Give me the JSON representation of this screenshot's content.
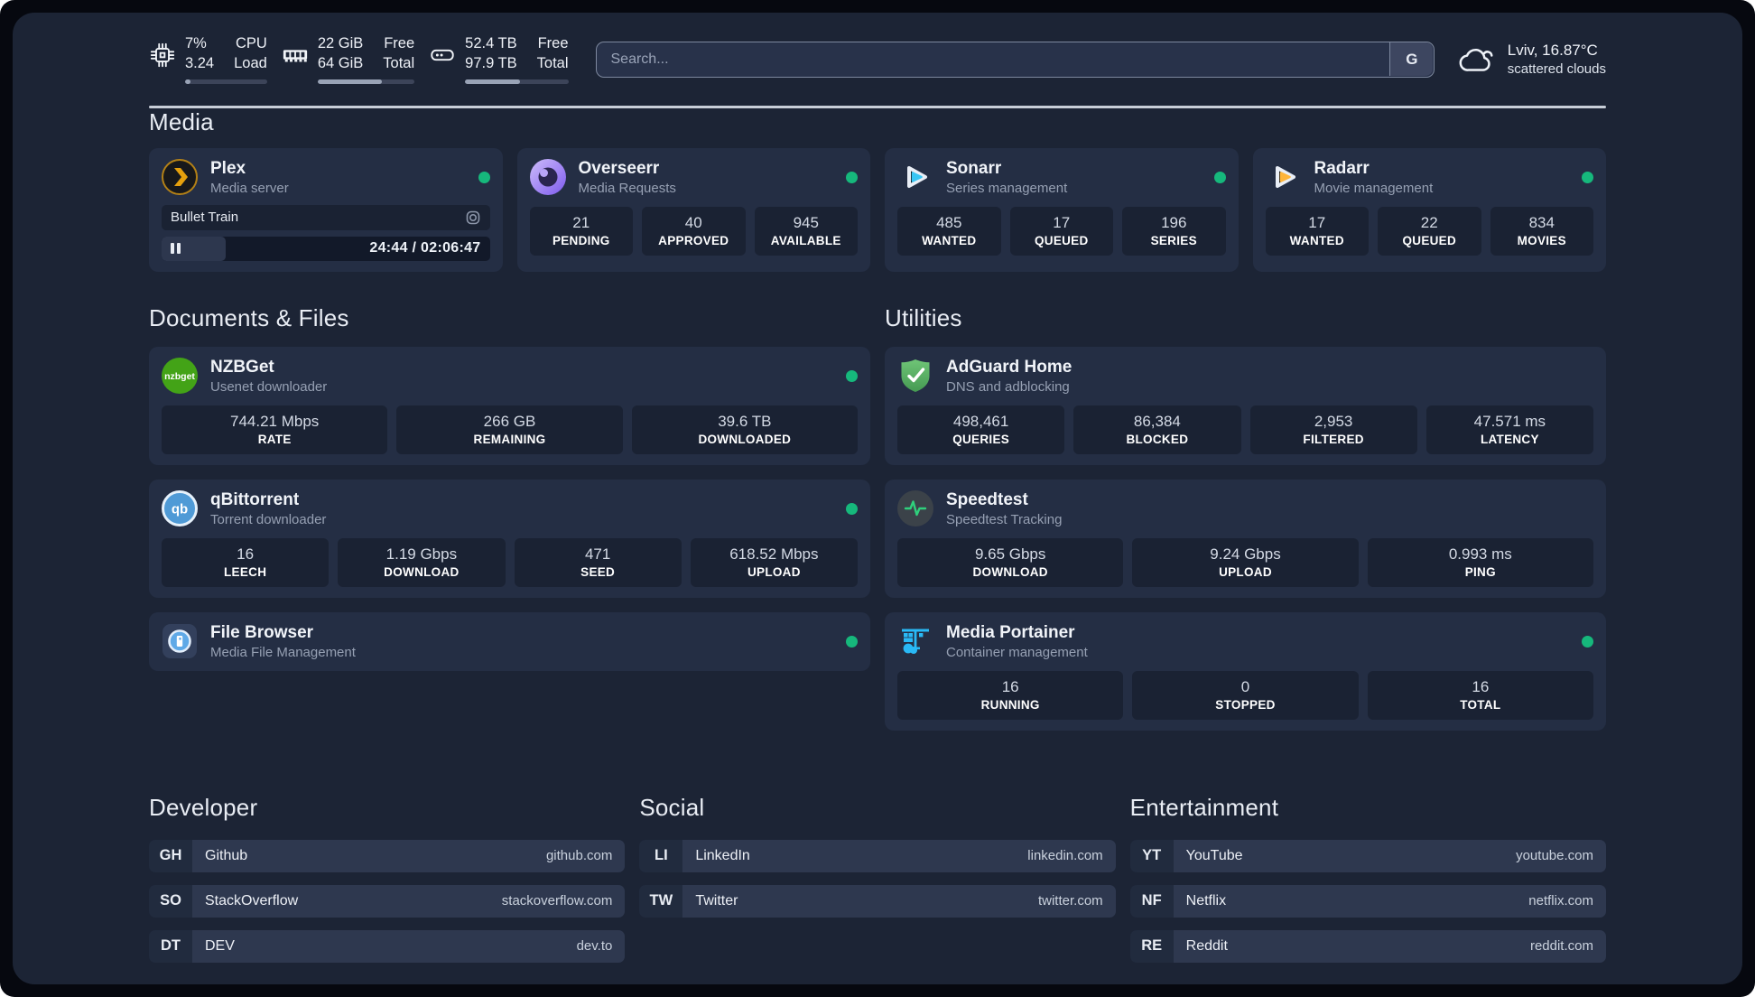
{
  "colors": {
    "page_bg": "#1c2435",
    "card_bg": "#242e44",
    "online_dot": "#16b87c",
    "divider": "#c8ced8"
  },
  "header": {
    "stats": [
      {
        "icon": "cpu-chip-icon",
        "values": [
          "7%",
          "3.24"
        ],
        "labels": [
          "CPU",
          "Load"
        ],
        "progress_pct": 7
      },
      {
        "icon": "memory-icon",
        "values": [
          "22 GiB",
          "64 GiB"
        ],
        "labels": [
          "Free",
          "Total"
        ],
        "progress_pct": 66
      },
      {
        "icon": "disk-icon",
        "values": [
          "52.4 TB",
          "97.9 TB"
        ],
        "labels": [
          "Free",
          "Total"
        ],
        "progress_pct": 53
      }
    ],
    "search": {
      "placeholder": "Search...",
      "engine": "G"
    },
    "weather": {
      "icon": "cloud-icon",
      "location": "Lviv, 16.87°C",
      "condition": "scattered clouds"
    }
  },
  "sections": {
    "media": {
      "title": "Media",
      "apps": [
        {
          "name": "Plex",
          "desc": "Media server",
          "icon": "plex-icon",
          "online": true,
          "player": {
            "title": "Bullet Train",
            "time": "24:44 / 02:06:47",
            "progress_pct": 19.5
          }
        },
        {
          "name": "Overseerr",
          "desc": "Media Requests",
          "icon": "overseerr-icon",
          "online": true,
          "stats": [
            {
              "value": "21",
              "label": "PENDING"
            },
            {
              "value": "40",
              "label": "APPROVED"
            },
            {
              "value": "945",
              "label": "AVAILABLE"
            }
          ]
        },
        {
          "name": "Sonarr",
          "desc": "Series management",
          "icon": "sonarr-icon",
          "online": true,
          "stats": [
            {
              "value": "485",
              "label": "WANTED"
            },
            {
              "value": "17",
              "label": "QUEUED"
            },
            {
              "value": "196",
              "label": "SERIES"
            }
          ]
        },
        {
          "name": "Radarr",
          "desc": "Movie management",
          "icon": "radarr-icon",
          "online": true,
          "stats": [
            {
              "value": "17",
              "label": "WANTED"
            },
            {
              "value": "22",
              "label": "QUEUED"
            },
            {
              "value": "834",
              "label": "MOVIES"
            }
          ]
        }
      ]
    },
    "documents": {
      "title": "Documents & Files",
      "apps": [
        {
          "name": "NZBGet",
          "desc": "Usenet downloader",
          "icon": "nzbget-icon",
          "online": true,
          "stats": [
            {
              "value": "744.21 Mbps",
              "label": "RATE"
            },
            {
              "value": "266 GB",
              "label": "REMAINING"
            },
            {
              "value": "39.6 TB",
              "label": "DOWNLOADED"
            }
          ]
        },
        {
          "name": "qBittorrent",
          "desc": "Torrent downloader",
          "icon": "qbittorrent-icon",
          "online": true,
          "stats": [
            {
              "value": "16",
              "label": "LEECH"
            },
            {
              "value": "1.19 Gbps",
              "label": "DOWNLOAD"
            },
            {
              "value": "471",
              "label": "SEED"
            },
            {
              "value": "618.52 Mbps",
              "label": "UPLOAD"
            }
          ]
        },
        {
          "name": "File Browser",
          "desc": "Media File Management",
          "icon": "filebrowser-icon",
          "online": true
        }
      ]
    },
    "utilities": {
      "title": "Utilities",
      "apps": [
        {
          "name": "AdGuard Home",
          "desc": "DNS and adblocking",
          "icon": "adguard-icon",
          "online": false,
          "stats": [
            {
              "value": "498,461",
              "label": "QUERIES"
            },
            {
              "value": "86,384",
              "label": "BLOCKED"
            },
            {
              "value": "2,953",
              "label": "FILTERED"
            },
            {
              "value": "47.571 ms",
              "label": "LATENCY"
            }
          ]
        },
        {
          "name": "Speedtest",
          "desc": "Speedtest Tracking",
          "icon": "speedtest-icon",
          "online": false,
          "stats": [
            {
              "value": "9.65 Gbps",
              "label": "DOWNLOAD"
            },
            {
              "value": "9.24 Gbps",
              "label": "UPLOAD"
            },
            {
              "value": "0.993 ms",
              "label": "PING"
            }
          ]
        },
        {
          "name": "Media Portainer",
          "desc": "Container management",
          "icon": "portainer-icon",
          "online": true,
          "stats": [
            {
              "value": "16",
              "label": "RUNNING"
            },
            {
              "value": "0",
              "label": "STOPPED"
            },
            {
              "value": "16",
              "label": "TOTAL"
            }
          ]
        }
      ]
    }
  },
  "links": {
    "developer": {
      "title": "Developer",
      "items": [
        {
          "abbr": "GH",
          "name": "Github",
          "url": "github.com"
        },
        {
          "abbr": "SO",
          "name": "StackOverflow",
          "url": "stackoverflow.com"
        },
        {
          "abbr": "DT",
          "name": "DEV",
          "url": "dev.to"
        }
      ]
    },
    "social": {
      "title": "Social",
      "items": [
        {
          "abbr": "LI",
          "name": "LinkedIn",
          "url": "linkedin.com"
        },
        {
          "abbr": "TW",
          "name": "Twitter",
          "url": "twitter.com"
        }
      ]
    },
    "entertainment": {
      "title": "Entertainment",
      "items": [
        {
          "abbr": "YT",
          "name": "YouTube",
          "url": "youtube.com"
        },
        {
          "abbr": "NF",
          "name": "Netflix",
          "url": "netflix.com"
        },
        {
          "abbr": "RE",
          "name": "Reddit",
          "url": "reddit.com"
        }
      ]
    }
  }
}
